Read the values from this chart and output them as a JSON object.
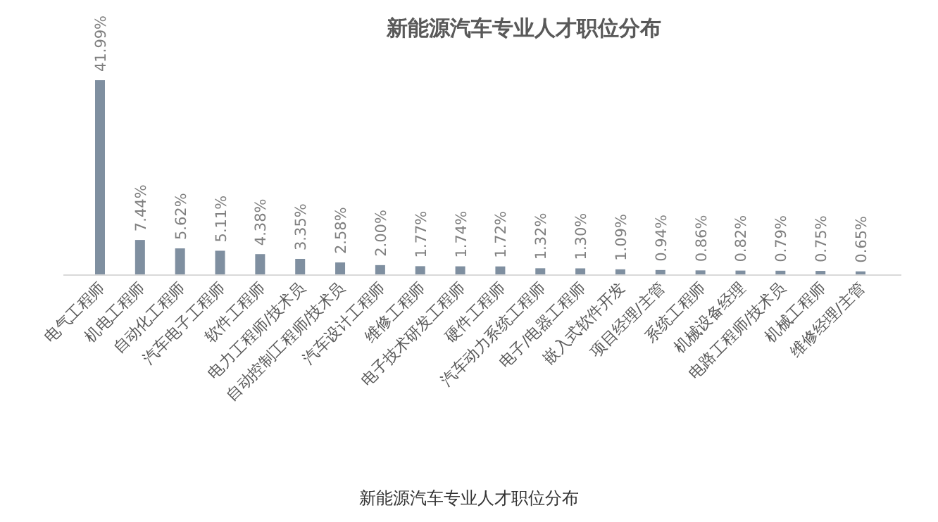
{
  "chart_data": {
    "type": "bar",
    "title": "新能源汽车专业人才职位分布",
    "categories": [
      "电气工程师",
      "机电工程师",
      "自动化工程师",
      "汽车电子工程师",
      "软件工程师",
      "电力工程师/技术员",
      "自动控制工程师/技术员",
      "汽车设计工程师",
      "维修工程师",
      "电子技术研发工程师",
      "硬件工程师",
      "汽车动力系统工程师",
      "电子/电器工程师",
      "嵌入式软件开发",
      "项目经理/主管",
      "系统工程师",
      "机械设备经理",
      "电路工程师/技术员",
      "机械工程师",
      "维修经理/主管"
    ],
    "values": [
      41.99,
      7.44,
      5.62,
      5.11,
      4.38,
      3.35,
      2.58,
      2.0,
      1.77,
      1.74,
      1.72,
      1.32,
      1.3,
      1.09,
      0.94,
      0.86,
      0.82,
      0.79,
      0.75,
      0.65
    ],
    "value_labels": [
      "41.99%",
      "7.44%",
      "5.62%",
      "5.11%",
      "4.38%",
      "3.35%",
      "2.58%",
      "2.00%",
      "1.77%",
      "1.74%",
      "1.72%",
      "1.32%",
      "1.30%",
      "1.09%",
      "0.94%",
      "0.86%",
      "0.82%",
      "0.79%",
      "0.75%",
      "0.65%"
    ],
    "color": "#7f8fa0",
    "annotations": [
      "新能源汽车专业人才职位分布"
    ]
  }
}
